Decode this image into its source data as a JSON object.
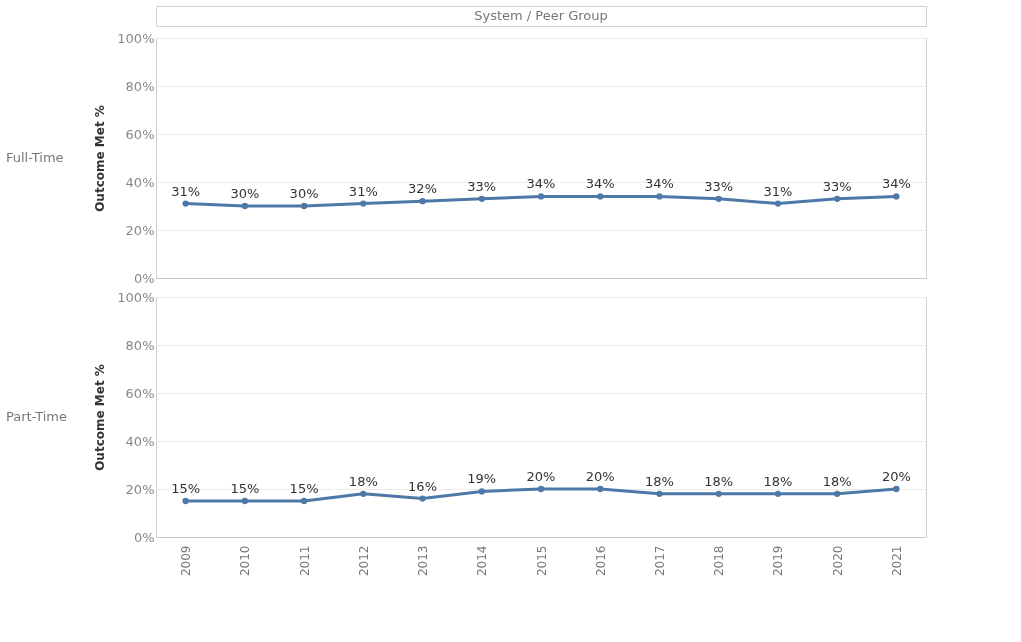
{
  "chart_data": [
    {
      "type": "line",
      "title": "Full-Time",
      "ylabel": "Outcome Met %",
      "annotations": [
        "System / Peer Group"
      ],
      "categories": [
        "2009",
        "2010",
        "2011",
        "2012",
        "2013",
        "2014",
        "2015",
        "2016",
        "2017",
        "2018",
        "2019",
        "2020",
        "2021"
      ],
      "series": [
        {
          "color": "#4e79a7",
          "values": [
            31,
            30,
            30,
            31,
            32,
            33,
            34,
            34,
            34,
            33,
            31,
            33,
            34
          ],
          "value_labels": [
            "31%",
            "30%",
            "30%",
            "31%",
            "32%",
            "33%",
            "34%",
            "34%",
            "34%",
            "33%",
            "31%",
            "33%",
            "34%"
          ]
        }
      ],
      "ylim": [
        0,
        100
      ],
      "yticks": [
        {
          "value": 0,
          "label": "0%"
        },
        {
          "value": 20,
          "label": "20%"
        },
        {
          "value": 40,
          "label": "40%"
        },
        {
          "value": 60,
          "label": "60%"
        },
        {
          "value": 80,
          "label": "80%"
        },
        {
          "value": 100,
          "label": "100%"
        }
      ],
      "grid": "y",
      "marker": "circle",
      "line_style": "solid",
      "tick_labels": "y"
    },
    {
      "type": "line",
      "title": "Part-Time",
      "ylabel": "Outcome Met %",
      "categories": [
        "2009",
        "2010",
        "2011",
        "2012",
        "2013",
        "2014",
        "2015",
        "2016",
        "2017",
        "2018",
        "2019",
        "2020",
        "2021"
      ],
      "series": [
        {
          "color": "#4e79a7",
          "values": [
            15,
            15,
            15,
            18,
            16,
            19,
            20,
            20,
            18,
            18,
            18,
            18,
            20
          ],
          "value_labels": [
            "15%",
            "15%",
            "15%",
            "18%",
            "16%",
            "19%",
            "20%",
            "20%",
            "18%",
            "18%",
            "18%",
            "18%",
            "20%"
          ]
        }
      ],
      "ylim": [
        0,
        100
      ],
      "yticks": [
        {
          "value": 0,
          "label": "0%"
        },
        {
          "value": 20,
          "label": "20%"
        },
        {
          "value": 40,
          "label": "40%"
        },
        {
          "value": 60,
          "label": "60%"
        },
        {
          "value": 80,
          "label": "80%"
        },
        {
          "value": 100,
          "label": "100%"
        }
      ],
      "grid": "y",
      "marker": "circle",
      "line_style": "solid"
    }
  ]
}
